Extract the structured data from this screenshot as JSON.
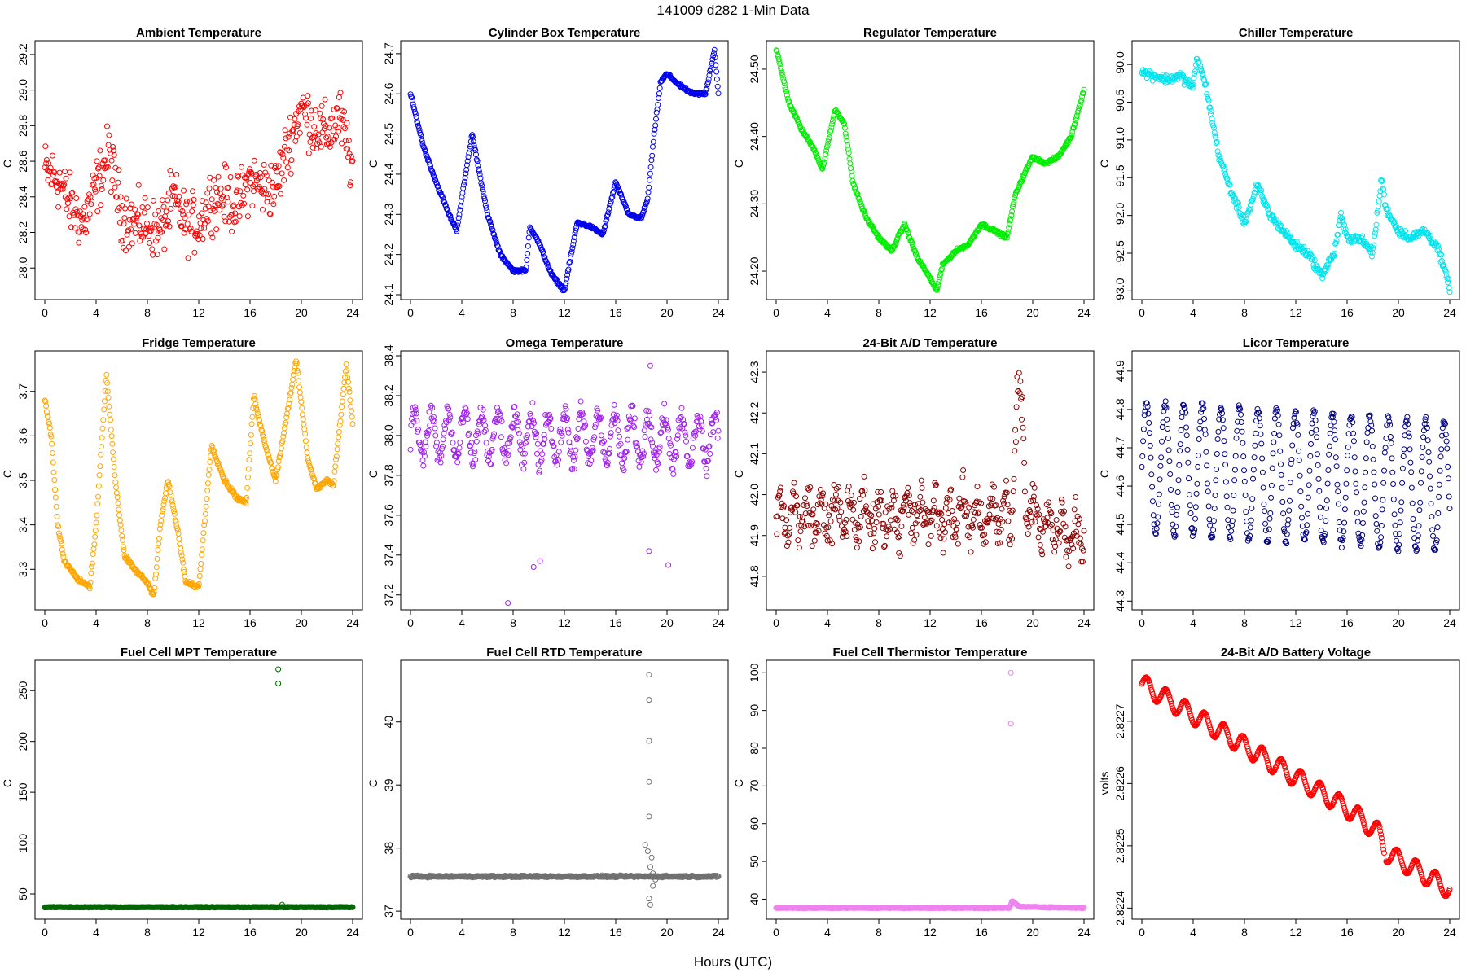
{
  "figure": {
    "title": "141009    d282    1-Min Data",
    "xlabel": "Hours (UTC)"
  },
  "chart_data": [
    {
      "type": "scatter",
      "title": "Ambient Temperature",
      "ylabel": "C",
      "color": "#ff0000",
      "xlim": [
        0,
        24
      ],
      "ylim": [
        27.85,
        29.25
      ],
      "xticks": [
        0,
        4,
        8,
        12,
        16,
        20,
        24
      ],
      "yticks": [
        28.0,
        28.2,
        28.4,
        28.6,
        28.8,
        29.0,
        29.2
      ],
      "ytick_labels": [
        "28.0",
        "28.2",
        "28.4",
        "28.6",
        "28.8",
        "29.0",
        "29.2"
      ],
      "profile": [
        [
          0,
          28.55
        ],
        [
          1,
          28.5
        ],
        [
          2,
          28.35
        ],
        [
          3,
          28.25
        ],
        [
          4,
          28.45
        ],
        [
          5,
          28.65
        ],
        [
          6,
          28.3
        ],
        [
          7,
          28.25
        ],
        [
          8,
          28.25
        ],
        [
          9,
          28.2
        ],
        [
          10,
          28.4
        ],
        [
          11,
          28.25
        ],
        [
          12,
          28.25
        ],
        [
          13,
          28.4
        ],
        [
          14,
          28.4
        ],
        [
          15,
          28.35
        ],
        [
          16,
          28.5
        ],
        [
          17,
          28.45
        ],
        [
          18,
          28.45
        ],
        [
          19,
          28.7
        ],
        [
          20,
          28.9
        ],
        [
          21,
          28.8
        ],
        [
          22,
          28.75
        ],
        [
          23,
          28.85
        ],
        [
          24,
          28.55
        ]
      ],
      "noise": 0.14
    },
    {
      "type": "scatter",
      "title": "Cylinder Box Temperature",
      "ylabel": "C",
      "color": "#0000ee",
      "xlim": [
        0,
        24
      ],
      "ylim": [
        24.1,
        24.72
      ],
      "xticks": [
        0,
        4,
        8,
        12,
        16,
        20,
        24
      ],
      "yticks": [
        24.1,
        24.2,
        24.3,
        24.4,
        24.5,
        24.6,
        24.7
      ],
      "ytick_labels": [
        "24.1",
        "24.2",
        "24.3",
        "24.4",
        "24.5",
        "24.6",
        "24.7"
      ],
      "profile": [
        [
          0,
          24.6
        ],
        [
          1,
          24.47
        ],
        [
          2,
          24.38
        ],
        [
          3,
          24.3
        ],
        [
          3.6,
          24.26
        ],
        [
          4.8,
          24.5
        ],
        [
          6,
          24.3
        ],
        [
          7,
          24.2
        ],
        [
          8,
          24.16
        ],
        [
          9,
          24.16
        ],
        [
          9.3,
          24.27
        ],
        [
          10,
          24.23
        ],
        [
          11,
          24.15
        ],
        [
          12,
          24.11
        ],
        [
          13,
          24.28
        ],
        [
          14,
          24.27
        ],
        [
          15,
          24.25
        ],
        [
          16,
          24.38
        ],
        [
          17,
          24.3
        ],
        [
          18,
          24.29
        ],
        [
          18.5,
          24.34
        ],
        [
          19,
          24.5
        ],
        [
          19.5,
          24.63
        ],
        [
          20,
          24.65
        ],
        [
          21,
          24.62
        ],
        [
          22,
          24.6
        ],
        [
          23,
          24.6
        ],
        [
          23.7,
          24.71
        ],
        [
          24,
          24.6
        ]
      ],
      "noise": 0.003
    },
    {
      "type": "scatter",
      "title": "Regulator Temperature",
      "ylabel": "C",
      "color": "#00ee00",
      "xlim": [
        0,
        24
      ],
      "ylim": [
        24.165,
        24.535
      ],
      "xticks": [
        0,
        4,
        8,
        12,
        16,
        20,
        24
      ],
      "yticks": [
        24.2,
        24.3,
        24.4,
        24.5
      ],
      "ytick_labels": [
        "24.20",
        "24.30",
        "24.40",
        "24.50"
      ],
      "profile": [
        [
          0,
          24.53
        ],
        [
          1,
          24.45
        ],
        [
          2,
          24.41
        ],
        [
          3,
          24.38
        ],
        [
          3.6,
          24.35
        ],
        [
          4.6,
          24.44
        ],
        [
          5.3,
          24.42
        ],
        [
          6,
          24.33
        ],
        [
          7,
          24.28
        ],
        [
          8,
          24.25
        ],
        [
          9,
          24.23
        ],
        [
          10,
          24.27
        ],
        [
          11,
          24.22
        ],
        [
          12,
          24.19
        ],
        [
          12.5,
          24.17
        ],
        [
          13,
          24.21
        ],
        [
          14,
          24.23
        ],
        [
          15,
          24.24
        ],
        [
          16,
          24.27
        ],
        [
          17,
          24.26
        ],
        [
          18,
          24.25
        ],
        [
          18.6,
          24.31
        ],
        [
          19,
          24.33
        ],
        [
          20,
          24.37
        ],
        [
          21,
          24.36
        ],
        [
          22,
          24.37
        ],
        [
          23,
          24.4
        ],
        [
          24,
          24.47
        ]
      ],
      "noise": 0.002
    },
    {
      "type": "scatter",
      "title": "Chiller Temperature",
      "ylabel": "C",
      "color": "#00e5ee",
      "xlim": [
        0,
        24
      ],
      "ylim": [
        -93.05,
        -89.75
      ],
      "xticks": [
        0,
        4,
        8,
        12,
        16,
        20,
        24
      ],
      "yticks": [
        -93.0,
        -92.5,
        -92.0,
        -91.5,
        -91.0,
        -90.5,
        -90.0
      ],
      "ytick_labels": [
        "-93.0",
        "-92.5",
        "-92.0",
        "-91.5",
        "-91.0",
        "-90.5",
        "-90.0"
      ],
      "profile": [
        [
          0,
          -90.1
        ],
        [
          1,
          -90.15
        ],
        [
          2,
          -90.2
        ],
        [
          3,
          -90.15
        ],
        [
          4,
          -90.3
        ],
        [
          4.3,
          -89.9
        ],
        [
          5,
          -90.3
        ],
        [
          6,
          -91.2
        ],
        [
          7,
          -91.7
        ],
        [
          8,
          -92.1
        ],
        [
          9,
          -91.6
        ],
        [
          10,
          -92.0
        ],
        [
          11,
          -92.2
        ],
        [
          12,
          -92.4
        ],
        [
          13,
          -92.5
        ],
        [
          14,
          -92.8
        ],
        [
          15,
          -92.5
        ],
        [
          15.5,
          -92.0
        ],
        [
          16,
          -92.3
        ],
        [
          17,
          -92.3
        ],
        [
          18,
          -92.5
        ],
        [
          18.7,
          -91.5
        ],
        [
          19,
          -91.9
        ],
        [
          20,
          -92.2
        ],
        [
          21,
          -92.3
        ],
        [
          22,
          -92.2
        ],
        [
          23,
          -92.4
        ],
        [
          24,
          -92.95
        ]
      ],
      "noise": 0.05
    },
    {
      "type": "scatter",
      "title": "Fridge Temperature",
      "ylabel": "C",
      "color": "#ffa500",
      "xlim": [
        0,
        24
      ],
      "ylim": [
        3.22,
        3.78
      ],
      "xticks": [
        0,
        4,
        8,
        12,
        16,
        20,
        24
      ],
      "yticks": [
        3.3,
        3.4,
        3.5,
        3.6,
        3.7
      ],
      "ytick_labels": [
        "3.3",
        "3.4",
        "3.5",
        "3.6",
        "3.7"
      ],
      "profile": [
        [
          0,
          3.68
        ],
        [
          0.5,
          3.6
        ],
        [
          1,
          3.4
        ],
        [
          1.5,
          3.32
        ],
        [
          2.5,
          3.28
        ],
        [
          3.5,
          3.26
        ],
        [
          4,
          3.4
        ],
        [
          4.8,
          3.74
        ],
        [
          5.5,
          3.5
        ],
        [
          6.2,
          3.33
        ],
        [
          7,
          3.3
        ],
        [
          8,
          3.27
        ],
        [
          8.5,
          3.24
        ],
        [
          9,
          3.4
        ],
        [
          9.6,
          3.5
        ],
        [
          10.4,
          3.38
        ],
        [
          11,
          3.27
        ],
        [
          12,
          3.26
        ],
        [
          13,
          3.58
        ],
        [
          14,
          3.5
        ],
        [
          15,
          3.46
        ],
        [
          15.7,
          3.45
        ],
        [
          16.3,
          3.69
        ],
        [
          17,
          3.6
        ],
        [
          18,
          3.5
        ],
        [
          19.6,
          3.77
        ],
        [
          20.5,
          3.55
        ],
        [
          21.2,
          3.48
        ],
        [
          22,
          3.5
        ],
        [
          22.5,
          3.49
        ],
        [
          23.5,
          3.76
        ],
        [
          24,
          3.63
        ]
      ],
      "noise": 0.004
    },
    {
      "type": "scatter",
      "title": "Omega Temperature",
      "ylabel": "C",
      "color": "#a020f0",
      "xlim": [
        0,
        24
      ],
      "ylim": [
        37.15,
        38.4
      ],
      "xticks": [
        0,
        4,
        8,
        12,
        16,
        20,
        24
      ],
      "yticks": [
        37.2,
        37.4,
        37.6,
        37.8,
        38.0,
        38.2,
        38.4
      ],
      "ytick_labels": [
        "37.2",
        "37.4",
        "37.6",
        "37.8",
        "38.0",
        "38.2",
        "38.4"
      ],
      "profile": [
        [
          0,
          38.0
        ],
        [
          24,
          37.98
        ]
      ],
      "osc_amp": 0.12,
      "osc_period": 1.3,
      "noise": 0.05,
      "outliers": [
        [
          7.6,
          37.16
        ],
        [
          9.6,
          37.34
        ],
        [
          10.1,
          37.37
        ],
        [
          18.6,
          37.42
        ],
        [
          20.1,
          37.35
        ],
        [
          18.7,
          38.35
        ]
      ]
    },
    {
      "type": "scatter",
      "title": "24-Bit A/D Temperature",
      "ylabel": "C",
      "color": "#8b0000",
      "xlim": [
        0,
        24
      ],
      "ylim": [
        41.73,
        42.34
      ],
      "xticks": [
        0,
        4,
        8,
        12,
        16,
        20,
        24
      ],
      "yticks": [
        41.8,
        41.9,
        42.0,
        42.1,
        42.2,
        42.3
      ],
      "ytick_labels": [
        "41.8",
        "41.9",
        "42.0",
        "42.1",
        "42.2",
        "42.3"
      ],
      "profile": [
        [
          0,
          41.95
        ],
        [
          18.4,
          41.95
        ],
        [
          18.8,
          42.25
        ],
        [
          19.2,
          42.2
        ],
        [
          19.5,
          41.95
        ],
        [
          24,
          41.9
        ]
      ],
      "osc_amp": 0.04,
      "osc_period": 1.1,
      "noise": 0.05
    },
    {
      "type": "scatter",
      "title": "Licor Temperature",
      "ylabel": "C",
      "color": "#000080",
      "xlim": [
        0,
        24
      ],
      "ylim": [
        44.29,
        44.94
      ],
      "xticks": [
        0,
        4,
        8,
        12,
        16,
        20,
        24
      ],
      "yticks": [
        44.3,
        44.4,
        44.5,
        44.6,
        44.7,
        44.8,
        44.9
      ],
      "ytick_labels": [
        "44.3",
        "44.4",
        "44.5",
        "44.6",
        "44.7",
        "44.8",
        "44.9"
      ],
      "profile": [
        [
          0,
          44.65
        ],
        [
          24,
          44.6
        ]
      ],
      "osc_amp": 0.17,
      "osc_period": 1.45,
      "noise": 0.01
    },
    {
      "type": "scatter",
      "title": "Fuel Cell MPT Temperature",
      "ylabel": "C",
      "color": "#006400",
      "xlim": [
        0,
        24
      ],
      "ylim": [
        30,
        275
      ],
      "xticks": [
        0,
        4,
        8,
        12,
        16,
        20,
        24
      ],
      "yticks": [
        50,
        100,
        150,
        200,
        250
      ],
      "ytick_labels": [
        "50",
        "100",
        "150",
        "200",
        "250"
      ],
      "profile": [
        [
          0,
          37
        ],
        [
          24,
          37
        ]
      ],
      "noise": 0.3,
      "outliers": [
        [
          18.2,
          271
        ],
        [
          18.2,
          257
        ],
        [
          18.5,
          39.5
        ]
      ]
    },
    {
      "type": "scatter",
      "title": "Fuel Cell RTD Temperature",
      "ylabel": "C",
      "color": "#707070",
      "xlim": [
        0,
        24
      ],
      "ylim": [
        36.95,
        40.9
      ],
      "xticks": [
        0,
        4,
        8,
        12,
        16,
        20,
        24
      ],
      "yticks": [
        37,
        38,
        39,
        40
      ],
      "ytick_labels": [
        "37",
        "38",
        "39",
        "40"
      ],
      "profile": [
        [
          0,
          37.55
        ],
        [
          24,
          37.55
        ]
      ],
      "noise": 0.012,
      "outliers": [
        [
          18.6,
          40.75
        ],
        [
          18.6,
          40.35
        ],
        [
          18.6,
          39.7
        ],
        [
          18.6,
          39.05
        ],
        [
          18.6,
          38.5
        ],
        [
          18.3,
          38.05
        ],
        [
          18.5,
          37.95
        ],
        [
          18.8,
          37.85
        ],
        [
          18.7,
          37.7
        ],
        [
          18.9,
          37.4
        ],
        [
          18.6,
          37.2
        ],
        [
          18.7,
          37.1
        ],
        [
          18.9,
          37.6
        ],
        [
          19.1,
          37.5
        ]
      ]
    },
    {
      "type": "scatter",
      "title": "Fuel Cell Thermistor Temperature",
      "ylabel": "C",
      "color": "#ee82ee",
      "xlim": [
        0,
        24
      ],
      "ylim": [
        36,
        102
      ],
      "xticks": [
        0,
        4,
        8,
        12,
        16,
        20,
        24
      ],
      "yticks": [
        40,
        50,
        60,
        70,
        80,
        90,
        100
      ],
      "ytick_labels": [
        "40",
        "50",
        "60",
        "70",
        "80",
        "90",
        "100"
      ],
      "profile": [
        [
          0,
          37.7
        ],
        [
          18.2,
          37.7
        ],
        [
          18.4,
          39.5
        ],
        [
          19,
          38
        ],
        [
          24,
          37.7
        ]
      ],
      "noise": 0.1,
      "outliers": [
        [
          18.3,
          100
        ],
        [
          18.3,
          86.5
        ]
      ]
    },
    {
      "type": "scatter",
      "title": "24-Bit A/D Battery Voltage",
      "ylabel": "volts",
      "color": "#ff0000",
      "xlim": [
        0,
        24
      ],
      "ylim": [
        2.82239,
        2.82279
      ],
      "xticks": [
        0,
        4,
        8,
        12,
        16,
        20,
        24
      ],
      "yticks": [
        2.8224,
        2.8225,
        2.8226,
        2.8227
      ],
      "ytick_labels": [
        "2.8224",
        "2.8225",
        "2.8226",
        "2.8227"
      ],
      "profile": [
        [
          0,
          2.82276
        ],
        [
          4,
          2.82271
        ],
        [
          8,
          2.82266
        ],
        [
          12,
          2.82261
        ],
        [
          16,
          2.82256
        ],
        [
          18.5,
          2.82252
        ],
        [
          19,
          2.82249
        ],
        [
          24,
          2.82243
        ]
      ],
      "osc_amp": 1.5e-05,
      "osc_period": 1.5,
      "noise": 5e-07,
      "gap": [
        18.9,
        19.0
      ]
    }
  ]
}
